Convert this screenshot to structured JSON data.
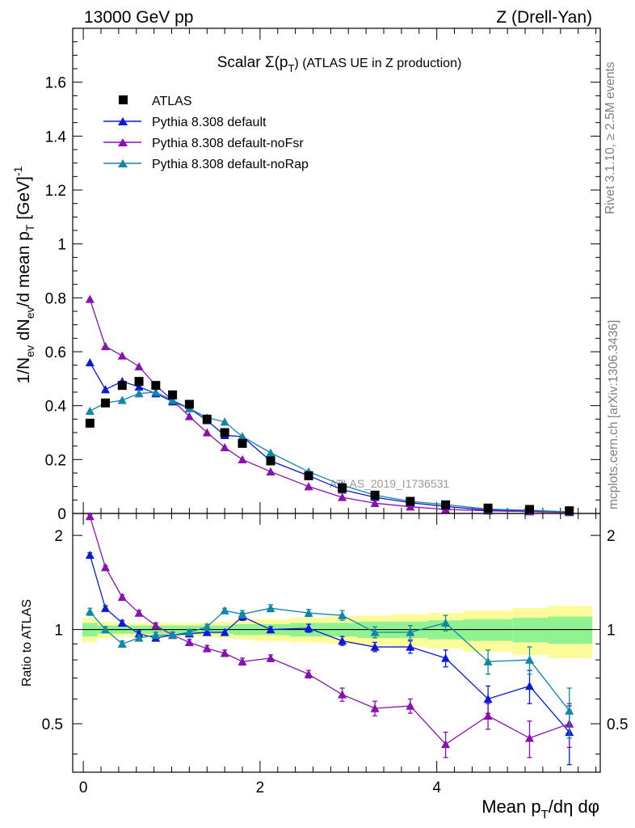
{
  "header": {
    "left": "13000 GeV pp",
    "right": "Z (Drell-Yan)"
  },
  "side_labels": {
    "rivet": "Rivet 3.1.10, ≥ 2.5M events",
    "mcplots": "mcplots.cern.ch [arXiv:1306.3436]"
  },
  "colors": {
    "atlas": "#000000",
    "default": "#0a1ad8",
    "noFsr": "#8a10b2",
    "noRap": "#1187a8",
    "band_inner": "#90f290",
    "band_outer": "#fcfc9a"
  },
  "chart_data": [
    {
      "type": "scatter",
      "title": "Scalar Σ(p_T) (ATLAS UE in Z production)",
      "title_parts": {
        "main": "Scalar Σ(p",
        "sub": "T",
        "tail": ") (ATLAS UE in Z production)"
      },
      "ylabel": "1/N_ev dN_ev/d mean p_T [GeV]^-1",
      "ylabel_parts": [
        "1/N",
        "ev",
        " dN",
        "ev",
        "/d mean p",
        "T",
        " [GeV]",
        "-1"
      ],
      "watermark": "ATLAS_2019_I1736531",
      "xlim": [
        -0.12,
        5.85
      ],
      "ylim": [
        0,
        1.8
      ],
      "yticks": [
        0,
        0.2,
        0.4,
        0.6,
        0.8,
        1,
        1.2,
        1.4,
        1.6
      ],
      "ytick_labels": [
        "0",
        "0.2",
        "0.4",
        "0.6",
        "0.8",
        "1",
        "1.2",
        "1.4",
        "1.6"
      ],
      "x": [
        0.075,
        0.25,
        0.44,
        0.63,
        0.82,
        1.01,
        1.2,
        1.4,
        1.6,
        1.8,
        2.12,
        2.55,
        2.93,
        3.3,
        3.7,
        4.1,
        4.58,
        5.05,
        5.5
      ],
      "series": [
        {
          "name": "ATLAS",
          "key": "atlas",
          "marker": "square",
          "values": [
            0.335,
            0.41,
            0.475,
            0.49,
            0.475,
            0.44,
            0.405,
            0.35,
            0.3,
            0.26,
            0.195,
            0.14,
            0.095,
            0.068,
            0.045,
            0.032,
            0.02,
            0.015,
            0.01
          ]
        },
        {
          "name": "Pythia 8.308 default",
          "key": "default",
          "marker": "triangle",
          "values": [
            0.56,
            0.46,
            0.49,
            0.47,
            0.445,
            0.415,
            0.39,
            0.345,
            0.29,
            0.285,
            0.195,
            0.14,
            0.088,
            0.06,
            0.04,
            0.026,
            0.012,
            0.01,
            0.005
          ]
        },
        {
          "name": "Pythia 8.308 default-noFsr",
          "key": "noFsr",
          "marker": "triangle",
          "values": [
            0.795,
            0.62,
            0.585,
            0.545,
            0.475,
            0.42,
            0.36,
            0.3,
            0.245,
            0.2,
            0.155,
            0.1,
            0.06,
            0.038,
            0.025,
            0.015,
            0.01,
            0.007,
            0.004
          ]
        },
        {
          "name": "Pythia 8.308 default-noRap",
          "key": "noRap",
          "marker": "triangle",
          "values": [
            0.38,
            0.41,
            0.42,
            0.445,
            0.45,
            0.42,
            0.39,
            0.355,
            0.34,
            0.285,
            0.225,
            0.155,
            0.105,
            0.068,
            0.045,
            0.033,
            0.016,
            0.012,
            0.006
          ]
        }
      ]
    },
    {
      "type": "scatter",
      "ylabel": "Ratio to ATLAS",
      "xlabel": "Mean p_T/dη dφ",
      "xlabel_parts": [
        "Mean p",
        "T",
        "/dη dφ"
      ],
      "xlim": [
        -0.12,
        5.85
      ],
      "ylim": [
        0.35,
        2.35
      ],
      "yscale": "log",
      "xticks": [
        0,
        2,
        4
      ],
      "xtick_labels": [
        "0",
        "2",
        "4"
      ],
      "yticks": [
        0.5,
        1,
        2
      ],
      "ytick_labels": [
        "0.5",
        "1",
        "2"
      ],
      "x": [
        0.075,
        0.25,
        0.44,
        0.63,
        0.82,
        1.01,
        1.2,
        1.4,
        1.6,
        1.8,
        2.12,
        2.55,
        2.93,
        3.3,
        3.7,
        4.1,
        4.58,
        5.05,
        5.5
      ],
      "bins": [
        -0.01,
        0.16,
        0.34,
        0.53,
        0.72,
        0.91,
        1.1,
        1.3,
        1.5,
        1.7,
        1.9,
        2.34,
        2.76,
        3.1,
        3.5,
        3.9,
        4.3,
        4.86,
        5.26,
        5.76
      ],
      "band_inner": [
        0.05,
        0.03,
        0.03,
        0.03,
        0.03,
        0.03,
        0.03,
        0.03,
        0.03,
        0.04,
        0.04,
        0.05,
        0.05,
        0.06,
        0.06,
        0.07,
        0.08,
        0.09,
        0.1
      ],
      "band_outer": [
        0.09,
        0.06,
        0.05,
        0.05,
        0.05,
        0.05,
        0.05,
        0.05,
        0.06,
        0.07,
        0.08,
        0.09,
        0.1,
        0.11,
        0.12,
        0.13,
        0.15,
        0.17,
        0.19
      ],
      "series": [
        {
          "name": "Pythia 8.308 default",
          "key": "default",
          "values": [
            1.73,
            1.17,
            1.05,
            0.97,
            0.94,
            0.96,
            0.97,
            0.98,
            0.98,
            1.1,
            1.0,
            1.01,
            0.92,
            0.88,
            0.88,
            0.81,
            0.6,
            0.66,
            0.47
          ],
          "errors": [
            0.03,
            0.02,
            0.02,
            0.02,
            0.02,
            0.02,
            0.02,
            0.02,
            0.02,
            0.03,
            0.02,
            0.03,
            0.03,
            0.03,
            0.04,
            0.05,
            0.06,
            0.08,
            0.1
          ]
        },
        {
          "name": "Pythia 8.308 default-noFsr",
          "key": "noFsr",
          "values": [
            2.3,
            1.58,
            1.27,
            1.13,
            1.03,
            0.96,
            0.91,
            0.87,
            0.84,
            0.79,
            0.81,
            0.72,
            0.62,
            0.56,
            0.57,
            0.43,
            0.53,
            0.45,
            0.5
          ],
          "errors": [
            0.03,
            0.02,
            0.02,
            0.02,
            0.02,
            0.02,
            0.02,
            0.02,
            0.02,
            0.02,
            0.02,
            0.02,
            0.03,
            0.03,
            0.03,
            0.04,
            0.05,
            0.06,
            0.08
          ]
        },
        {
          "name": "Pythia 8.308 default-noRap",
          "key": "noRap",
          "values": [
            1.14,
            1.0,
            0.9,
            0.94,
            0.96,
            0.96,
            0.98,
            1.02,
            1.15,
            1.12,
            1.17,
            1.13,
            1.11,
            0.98,
            0.98,
            1.05,
            0.79,
            0.8,
            0.55
          ],
          "errors": [
            0.03,
            0.02,
            0.02,
            0.02,
            0.02,
            0.02,
            0.02,
            0.02,
            0.02,
            0.03,
            0.03,
            0.03,
            0.04,
            0.04,
            0.05,
            0.06,
            0.07,
            0.08,
            0.1
          ]
        }
      ]
    }
  ]
}
